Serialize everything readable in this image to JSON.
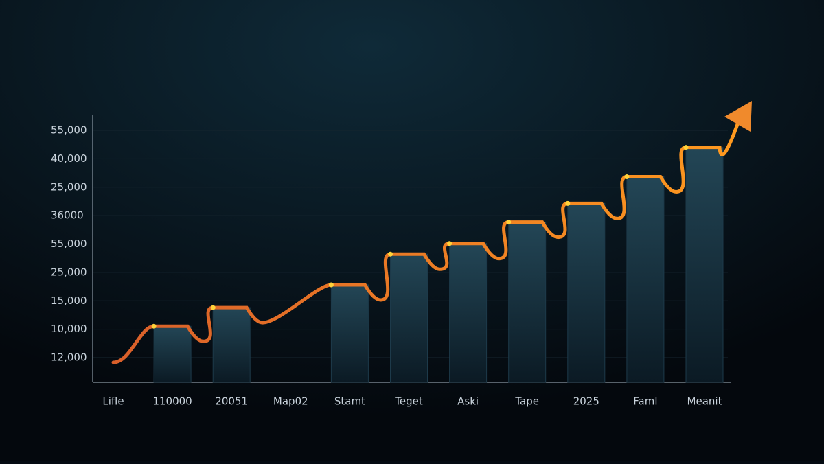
{
  "chart_data": {
    "type": "bar",
    "y_labels": [
      "55,000",
      "40,000",
      "25,000",
      "36000",
      "55,000",
      "25,000",
      "15,000",
      "10,000",
      "12,000"
    ],
    "categories": [
      "Lifle",
      "110000",
      "20051",
      "Map02",
      "Stamt",
      "Teget",
      "Aski",
      "Tape",
      "2025",
      "Faml",
      "Meanit"
    ],
    "values": [
      null,
      21,
      28,
      null,
      36.5,
      48,
      52,
      60,
      67,
      77,
      88
    ],
    "color": "#1d3a4a",
    "line_color": "#f08a2c"
  }
}
